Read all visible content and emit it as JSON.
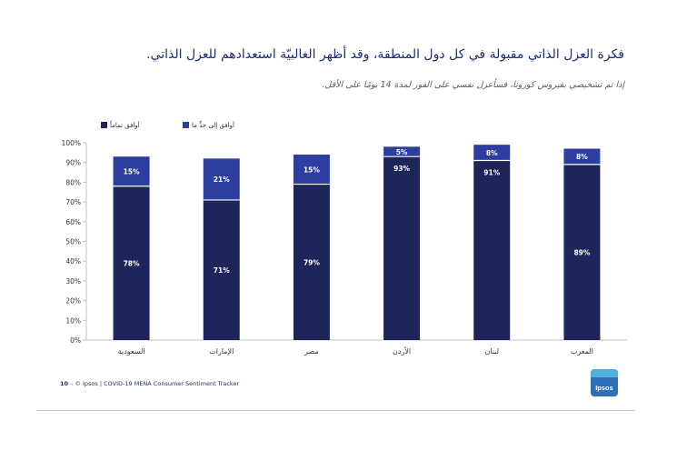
{
  "title": "فكرة العزل الذاتي مقبولة في كل دول المنطقة، وقد أظهر الغالبيّة استعدادهم للعزل الذاتي.",
  "subtitle": "إذا تم تشخيصي بفيروس كورونا، فسأعزل نفسي على الفور لمدة 14 يومًا على الأقل.",
  "footer": {
    "page": "10",
    "source": "– © Ipsos | COVID-19 MENA Consumer Sentiment Tracker"
  },
  "logo": {
    "text": "Ipsos",
    "color": "#2f6fb5",
    "accent": "#4fb0d8"
  },
  "colors": {
    "dark": "#1e2559",
    "light": "#2e3ea0",
    "axis": "#bfc3cf",
    "tick_text": "#333333"
  },
  "chart_data": {
    "type": "bar",
    "stacked": true,
    "categories": [
      "السعودية",
      "الإمارات",
      "مصر",
      "الأردن",
      "لبنان",
      "المغرب"
    ],
    "series": [
      {
        "name": "أوافق تماماً",
        "values": [
          78,
          71,
          79,
          93,
          91,
          89
        ],
        "labels": [
          "78%",
          "71%",
          "79%",
          "93%",
          "91%",
          "89%"
        ]
      },
      {
        "name": "أوافق إلى حدٍّ ما",
        "values": [
          15,
          21,
          15,
          5,
          8,
          8
        ],
        "labels": [
          "15%",
          "21%",
          "15%",
          "5%",
          "8%",
          "8%"
        ]
      }
    ],
    "ylim": [
      0,
      100
    ],
    "yticks": [
      "0%",
      "10%",
      "20%",
      "30%",
      "40%",
      "50%",
      "60%",
      "70%",
      "80%",
      "90%",
      "100%"
    ],
    "legend_position": "top-left",
    "title": "",
    "xlabel": "",
    "ylabel": ""
  }
}
